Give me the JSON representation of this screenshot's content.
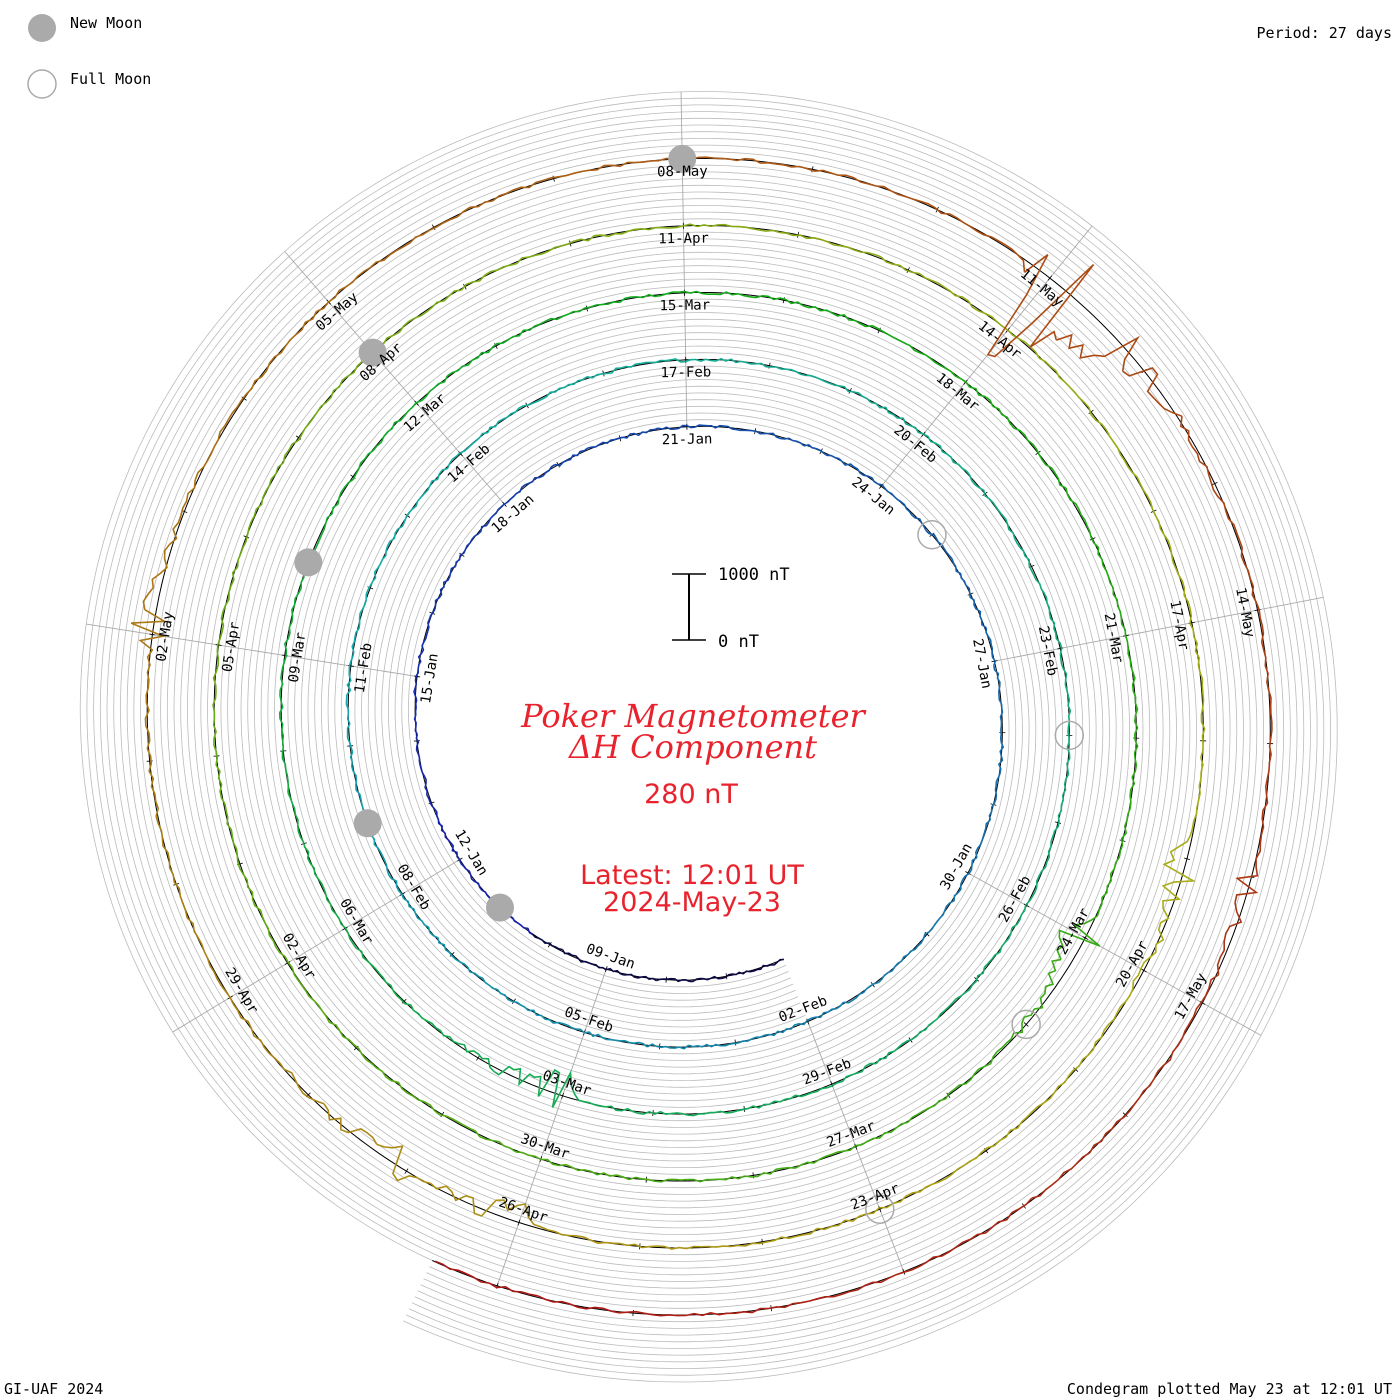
{
  "legend": {
    "new_moon_label": "New Moon",
    "full_moon_label": "Full Moon"
  },
  "period_label": "Period: 27 days",
  "credit": "GI-UAF 2024",
  "plotted_text": "Condegram plotted May 23 at 12:01 UT",
  "title_line1": "Poker Magnetometer",
  "title_line2": "ΔH Component",
  "range_label": "280 nT",
  "latest_line1": "Latest: 12:01 UT",
  "latest_line2": "2024-May-23",
  "scale_bar": {
    "top_label": "1000 nT",
    "bottom_label": "0 nT"
  },
  "colors": {
    "text_red": "#e8232d",
    "moon_gray": "#aaaaaa",
    "grid_gray": "#bbbbbb",
    "spoke_gray": "#aaaaaa"
  },
  "chart_data": {
    "type": "line",
    "plot_style": "spiral condegram",
    "start_date": "2024-Jan-06",
    "end_date": "2024-May-23",
    "period_days": 27,
    "date_labels": [
      "09-Jan",
      "12-Jan",
      "15-Jan",
      "18-Jan",
      "21-Jan",
      "24-Jan",
      "27-Jan",
      "30-Jan",
      "02-Feb",
      "05-Feb",
      "08-Feb",
      "11-Feb",
      "14-Feb",
      "17-Feb",
      "20-Feb",
      "23-Feb",
      "26-Feb",
      "29-Feb",
      "03-Mar",
      "06-Mar",
      "09-Mar",
      "12-Mar",
      "15-Mar",
      "18-Mar",
      "21-Mar",
      "24-Mar",
      "27-Mar",
      "30-Mar",
      "02-Apr",
      "05-Apr",
      "08-Apr",
      "11-Apr",
      "14-Apr",
      "17-Apr",
      "20-Apr",
      "23-Apr",
      "26-Apr",
      "29-Apr",
      "02-May",
      "05-May",
      "08-May",
      "11-May",
      "14-May",
      "17-May"
    ],
    "new_moons": [
      "2024-Jan-11",
      "2024-Feb-09",
      "2024-Mar-10",
      "2024-Apr-08",
      "2024-May-08"
    ],
    "full_moons": [
      "2024-Jan-25",
      "2024-Feb-24",
      "2024-Mar-25",
      "2024-Apr-23"
    ],
    "disturbances": [
      {
        "date": "2024-Mar-03",
        "delta_nT": -400
      },
      {
        "date": "2024-Mar-24",
        "delta_nT": -450
      },
      {
        "date": "2024-Apr-19",
        "delta_nT": -330
      },
      {
        "date": "2024-Apr-26",
        "delta_nT": -300
      },
      {
        "date": "2024-Apr-27",
        "delta_nT": -280
      },
      {
        "date": "2024-May-02",
        "delta_nT": 300
      },
      {
        "date": "2024-May-11",
        "delta_nT": -1600
      },
      {
        "date": "2024-May-16",
        "delta_nT": -200
      }
    ]
  }
}
